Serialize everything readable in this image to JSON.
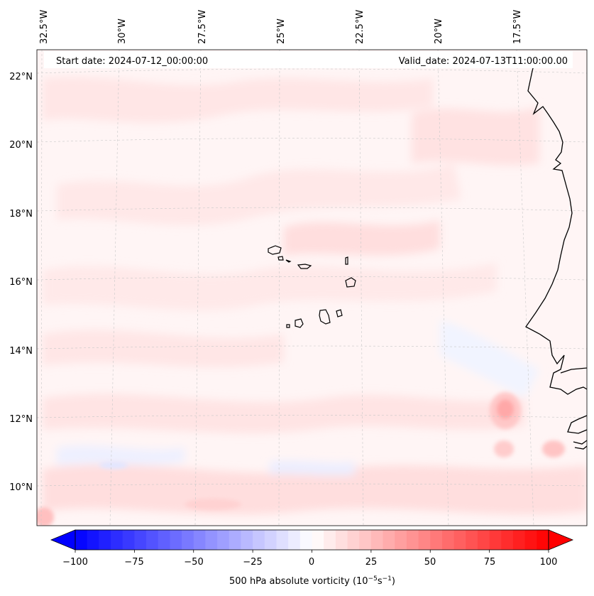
{
  "header": {
    "start_date": "Start date: 2024-07-12_00:00:00",
    "valid_date": "Valid_date: 2024-07-13T11:00:00.00"
  },
  "longitude_labels": [
    "32.5°W",
    "30°W",
    "27.5°W",
    "25°W",
    "22.5°W",
    "20°W",
    "17.5°W"
  ],
  "latitude_labels": [
    "22°N",
    "20°N",
    "18°N",
    "16°N",
    "14°N",
    "12°N",
    "10°N"
  ],
  "colorbar": {
    "label": "500 hPa absolute vorticity (10",
    "label_sup1": "−5",
    "label_mid": "s",
    "label_sup2": "−1",
    "label_end": ")",
    "ticks": [
      "−100",
      "−75",
      "−50",
      "−25",
      "0",
      "25",
      "50",
      "75",
      "100"
    ],
    "min": -100,
    "max": 100,
    "negative_color": "#0000ff",
    "positive_color": "#ff0000"
  }
}
